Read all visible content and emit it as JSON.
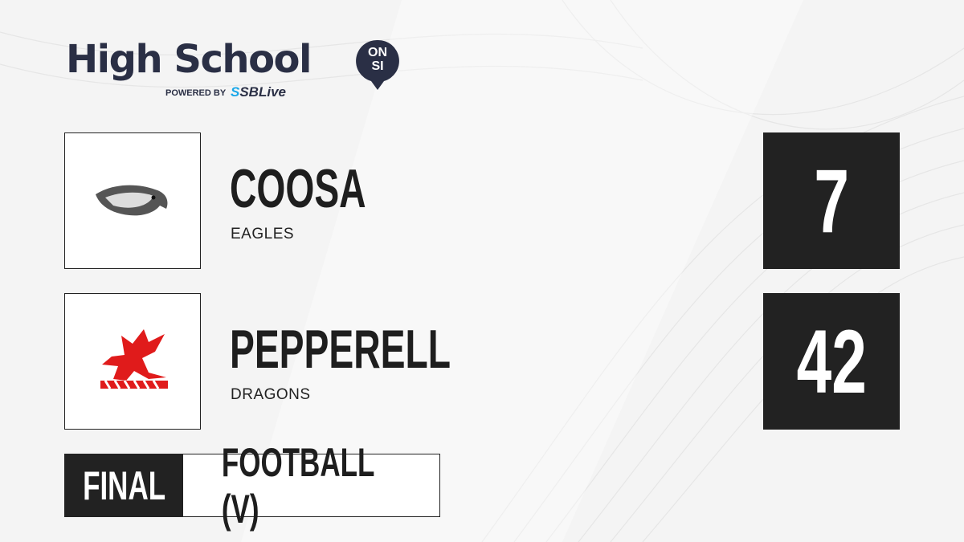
{
  "brand": {
    "title": "High School",
    "badge_top": "ON",
    "badge_bottom": "SI",
    "powered_by": "POWERED BY",
    "partner_prefix": "S",
    "partner": "SBLive",
    "color": "#2a2f45",
    "partner_color": "#1aa7e8"
  },
  "teams": [
    {
      "name": "COOSA",
      "mascot": "EAGLES",
      "score": "7",
      "logo_icon": "eagle-icon"
    },
    {
      "name": "PEPPERELL",
      "mascot": "DRAGONS",
      "score": "42",
      "logo_icon": "dragon-icon"
    }
  ],
  "status": {
    "label": "FINAL",
    "sport": "FOOTBALL (V)"
  }
}
